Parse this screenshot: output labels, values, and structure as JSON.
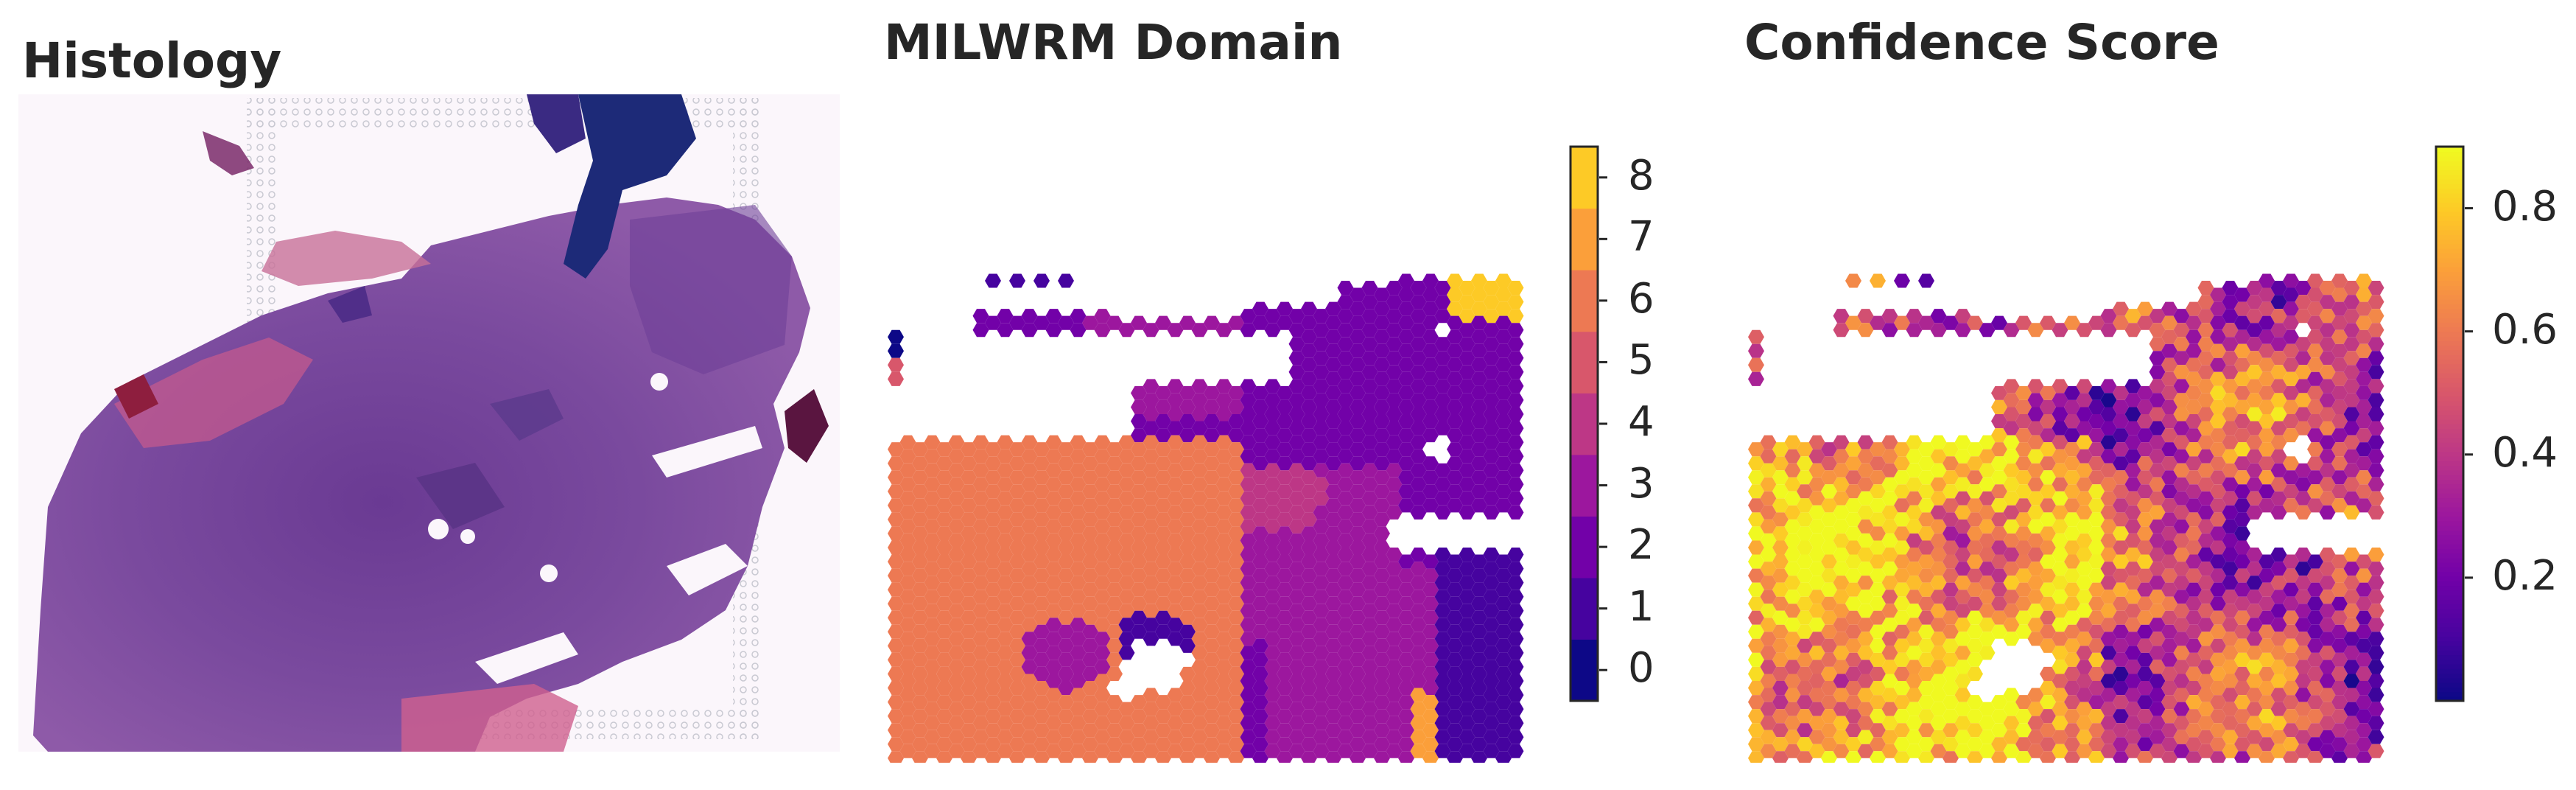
{
  "chart_data": [
    {
      "type": "image",
      "title": "Histology",
      "content": "H&E-stained tissue section"
    },
    {
      "type": "heatmap",
      "title": "MILWRM Domain",
      "colormap": "plasma",
      "colorbar": {
        "kind": "discrete",
        "range": [
          -0.5,
          8.5
        ],
        "ticks": [
          0,
          1,
          2,
          3,
          4,
          5,
          6,
          7,
          8
        ],
        "tick_labels": [
          "0",
          "1",
          "2",
          "3",
          "4",
          "5",
          "6",
          "7",
          "8"
        ],
        "colors": [
          "#0d0887",
          "#46039f",
          "#7201a8",
          "#9c179e",
          "#bd3786",
          "#d8576b",
          "#ed7953",
          "#fb9f3a",
          "#fdca26"
        ]
      },
      "grid": false
    },
    {
      "type": "heatmap",
      "title": "Confidence Score",
      "colormap": "plasma",
      "colorbar": {
        "kind": "continuous",
        "range": [
          0,
          0.9
        ],
        "ticks": [
          0.2,
          0.4,
          0.6,
          0.8
        ],
        "tick_labels": [
          "0.2",
          "0.4",
          "0.6",
          "0.8"
        ]
      },
      "grid": false
    }
  ]
}
